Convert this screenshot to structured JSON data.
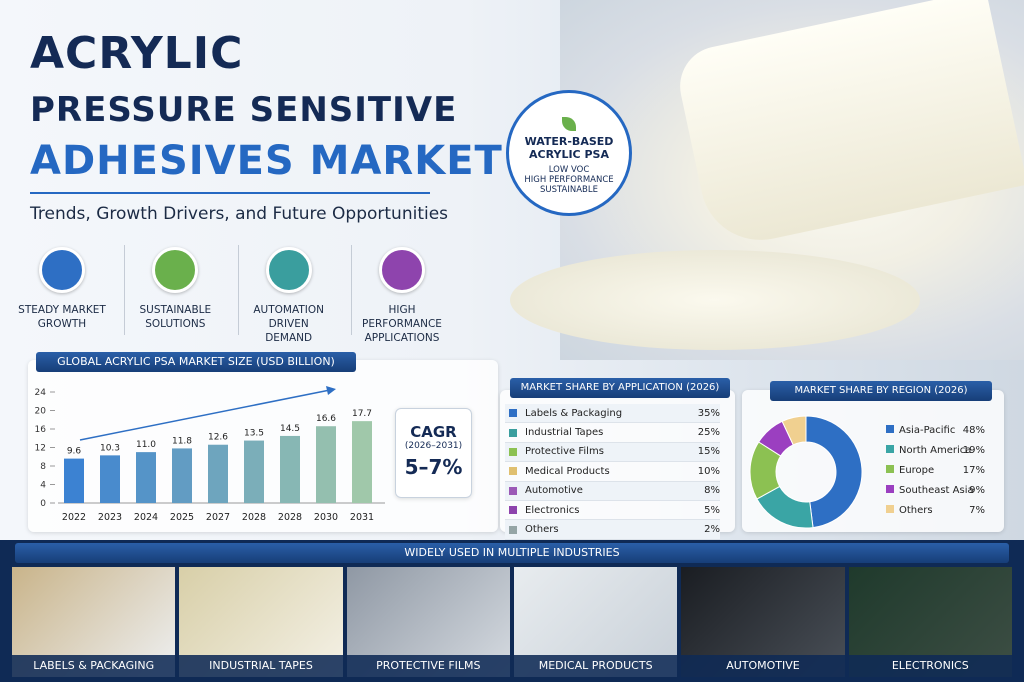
{
  "header": {
    "title_lines": [
      "ACRYLIC",
      "PRESSURE SENSITIVE",
      "ADHESIVES MARKET"
    ],
    "subtitle": "Trends, Growth Drivers, and Future Opportunities"
  },
  "features": [
    {
      "label": "STEADY MARKET GROWTH",
      "color": "#2e6fc4"
    },
    {
      "label": "SUSTAINABLE SOLUTIONS",
      "color": "#6ab04c"
    },
    {
      "label": "AUTOMATION DRIVEN DEMAND",
      "color": "#3a9e9e"
    },
    {
      "label": "HIGH PERFORMANCE APPLICATIONS",
      "color": "#8e44ad"
    }
  ],
  "badge": {
    "title": "WATER-BASED ACRYLIC PSA",
    "lines": [
      "LOW VOC",
      "HIGH PERFORMANCE",
      "SUSTAINABLE"
    ]
  },
  "bar_chart": {
    "type": "bar",
    "title": "GLOBAL ACRYLIC PSA MARKET SIZE (USD BILLION)",
    "categories": [
      "2022",
      "2023",
      "2024",
      "2025",
      "2027",
      "2028",
      "2028",
      "2030",
      "2031"
    ],
    "values": [
      9.6,
      10.3,
      11.0,
      11.8,
      12.6,
      13.5,
      14.5,
      16.6,
      17.7
    ],
    "value_labels": [
      "9.6",
      "10.3",
      "11.0",
      "11.8",
      "12.6",
      "13.5",
      "14.5",
      "16.6",
      "17.7"
    ],
    "ylim": [
      0,
      24
    ],
    "yticks": [
      0,
      4,
      8,
      12,
      16,
      20,
      24
    ]
  },
  "cagr": {
    "title": "CAGR",
    "period": "(2026–2031)",
    "value": "5–7%"
  },
  "application": {
    "title": "MARKET SHARE BY APPLICATION (2026)",
    "rows": [
      {
        "name": "Labels & Packaging",
        "share": "35%",
        "color": "#2e6fc4"
      },
      {
        "name": "Industrial Tapes",
        "share": "25%",
        "color": "#3a9e9e"
      },
      {
        "name": "Protective Films",
        "share": "15%",
        "color": "#8cc152"
      },
      {
        "name": "Medical Products",
        "share": "10%",
        "color": "#e0c070"
      },
      {
        "name": "Automotive",
        "share": "8%",
        "color": "#9b59b6"
      },
      {
        "name": "Electronics",
        "share": "5%",
        "color": "#8e44ad"
      },
      {
        "name": "Others",
        "share": "2%",
        "color": "#95a5a6"
      }
    ]
  },
  "region": {
    "type": "pie",
    "title": "MARKET SHARE BY REGION (2026)",
    "categories": [
      "Asia-Pacific",
      "North America",
      "Europe",
      "Southeast Asia",
      "Others"
    ],
    "values": [
      48,
      19,
      17,
      9,
      7
    ],
    "value_labels": [
      "48%",
      "19%",
      "17%",
      "9%",
      "7%"
    ],
    "colors": [
      "#2e6fc4",
      "#3aa5a5",
      "#8cc152",
      "#9b3fc0",
      "#f0d090"
    ]
  },
  "industries": {
    "title": "WIDELY USED IN MULTIPLE INDUSTRIES",
    "items": [
      "LABELS & PACKAGING",
      "INDUSTRIAL TAPES",
      "PROTECTIVE FILMS",
      "MEDICAL PRODUCTS",
      "AUTOMOTIVE",
      "ELECTRONICS"
    ]
  }
}
